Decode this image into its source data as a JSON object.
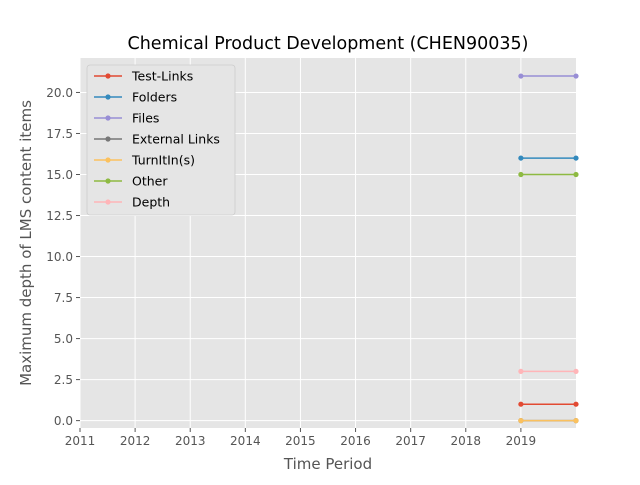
{
  "chart_data": {
    "type": "line",
    "title": "Chemical Product Development (CHEN90035)",
    "xlabel": "Time Period",
    "ylabel": "Maximum depth of LMS content items",
    "xlim": [
      2011,
      2020
    ],
    "ylim": [
      -0.45,
      22.1
    ],
    "x_ticks": [
      "2011",
      "2012",
      "2013",
      "2014",
      "2015",
      "2016",
      "2017",
      "2018",
      "2019"
    ],
    "y_ticks": [
      "0.0",
      "2.5",
      "5.0",
      "7.5",
      "10.0",
      "12.5",
      "15.0",
      "17.5",
      "20.0"
    ],
    "grid": true,
    "legend_position": "top-left",
    "series": [
      {
        "name": "Test-Links",
        "color": "#E24A33",
        "x": [
          2019,
          2020
        ],
        "y": [
          1,
          1
        ]
      },
      {
        "name": "Folders",
        "color": "#348ABD",
        "x": [
          2019,
          2020
        ],
        "y": [
          16,
          16
        ]
      },
      {
        "name": "Files",
        "color": "#988ED5",
        "x": [
          2019,
          2020
        ],
        "y": [
          21,
          21
        ]
      },
      {
        "name": "External Links",
        "color": "#777777",
        "x": [
          2019,
          2020
        ],
        "y": [
          0,
          0
        ]
      },
      {
        "name": "TurnItIn(s)",
        "color": "#FBC15E",
        "x": [
          2019,
          2020
        ],
        "y": [
          0,
          0
        ]
      },
      {
        "name": "Other",
        "color": "#8EBA42",
        "x": [
          2019,
          2020
        ],
        "y": [
          15,
          15
        ]
      },
      {
        "name": "Depth",
        "color": "#FFB5B8",
        "x": [
          2019,
          2020
        ],
        "y": [
          3,
          3
        ]
      }
    ]
  }
}
